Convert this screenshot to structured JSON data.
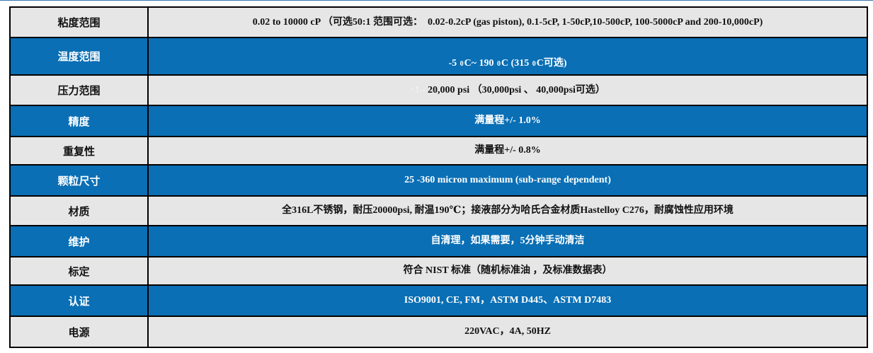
{
  "table": {
    "colors": {
      "blue": "#0a6fb5",
      "gray": "#e6e6e6",
      "border": "#000000",
      "text_on_blue": "#ffffff",
      "text_on_gray": "#111111",
      "topline": "#3a76ad"
    },
    "rows": [
      {
        "label": "粘度范围",
        "value": "0.02 to 10000 cP （可选50:1 范围可选：  0.02-0.2cP (gas piston), 0.1-5cP, 1-50cP,10-500cP, 100-5000cP and 200-10,000cP)",
        "style": "gray"
      },
      {
        "label": "温度范围",
        "value": "",
        "style": "blue"
      },
      {
        "label": "压力范围",
        "value": "",
        "style": "gray"
      },
      {
        "label": "精度",
        "value": "满量程+/- 1.0%",
        "style": "blue"
      },
      {
        "label": "重复性",
        "value": "满量程+/- 0.8%",
        "style": "gray"
      },
      {
        "label": "颗粒尺寸",
        "value": "25 -360 micron maximum (sub-range dependent)",
        "style": "blue"
      },
      {
        "label": "材质",
        "value": "全316L不锈钢，耐压20000psi, 耐温190℃；接液部分为哈氏合金材质Hastelloy C276，耐腐蚀性应用环境",
        "style": "gray"
      },
      {
        "label": "维护",
        "value": "自清理，如果需要，5分钟手动清洁",
        "style": "blue"
      },
      {
        "label": "标定",
        "value": "符合 NIST 标准（随机标准油 ，及标准数据表）",
        "style": "gray"
      },
      {
        "label": "认证",
        "value": "ISO9001, CE, FM，ASTM D445、ASTM D7483",
        "style": "blue"
      },
      {
        "label": "电源",
        "value": "220VAC，4A, 50HZ",
        "style": "gray"
      }
    ],
    "temperature": {
      "seg1": "-5 ",
      "sup": "0",
      "seg2": "C~ 190 ",
      "seg3": "C (315 ",
      "seg4": "C可选)"
    },
    "pressure": {
      "artifact": "<!--",
      "value": "20,000 psi （30,000psi 、 40,000psi可选）"
    }
  }
}
